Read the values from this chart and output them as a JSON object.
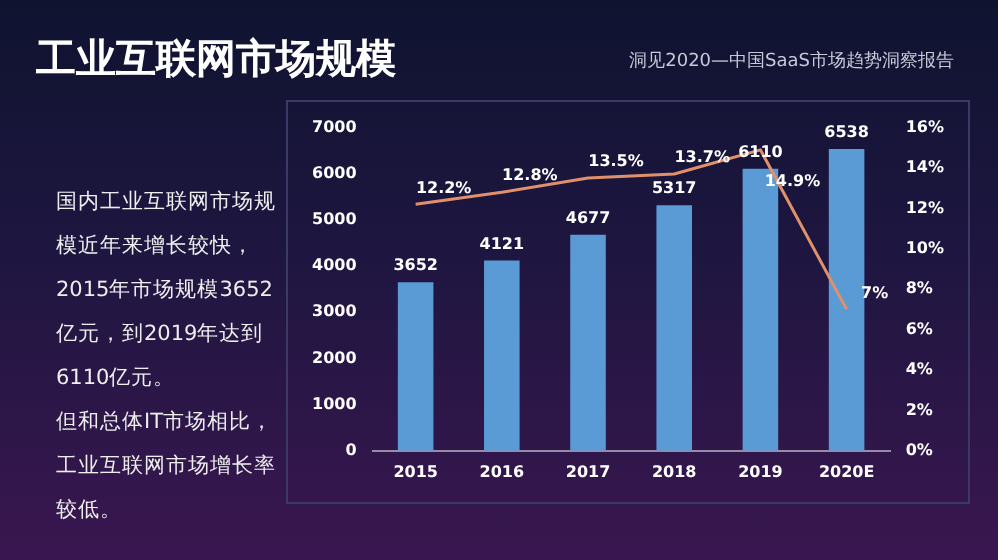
{
  "chart_data": {
    "type": "bar",
    "title": "工业互联网市场规模",
    "subtitle": "洞见2020—中国SaaS市场趋势洞察报告",
    "annotations": [
      "国内工业互联网市场规模近年来增长较快，2015年市场规模3652亿元，到2019年达到6110亿元。",
      "但和总体IT市场相比，工业互联网市场增长率较低。"
    ],
    "categories": [
      "2015",
      "2016",
      "2017",
      "2018",
      "2019",
      "2020E"
    ],
    "series": [
      {
        "color": "#5b9bd5",
        "values": [
          3652,
          4121,
          4677,
          5317,
          6110,
          6538
        ]
      },
      {
        "type": "line",
        "axis": "y2",
        "color": "#e0906a",
        "values": [
          12.2,
          12.8,
          13.5,
          13.7,
          14.9,
          7
        ],
        "value_labels": [
          "12.2%",
          "12.8%",
          "13.5%",
          "13.7%",
          "14.9%",
          "7%"
        ]
      }
    ],
    "ylim": [
      0,
      7000
    ],
    "yticks": [
      0,
      1000,
      2000,
      3000,
      4000,
      5000,
      6000,
      7000
    ],
    "y2lim": [
      0,
      16
    ],
    "y2ticks": [
      {
        "value": 0,
        "label": "0%"
      },
      {
        "value": 2,
        "label": "2%"
      },
      {
        "value": 4,
        "label": "4%"
      },
      {
        "value": 6,
        "label": "6%"
      },
      {
        "value": 8,
        "label": "8%"
      },
      {
        "value": 10,
        "label": "10%"
      },
      {
        "value": 12,
        "label": "12%"
      },
      {
        "value": 14,
        "label": "14%"
      },
      {
        "value": 16,
        "label": "16%"
      }
    ],
    "data_labels": true,
    "grid": false,
    "legend": false,
    "marker": "none",
    "line_style": "solid"
  }
}
